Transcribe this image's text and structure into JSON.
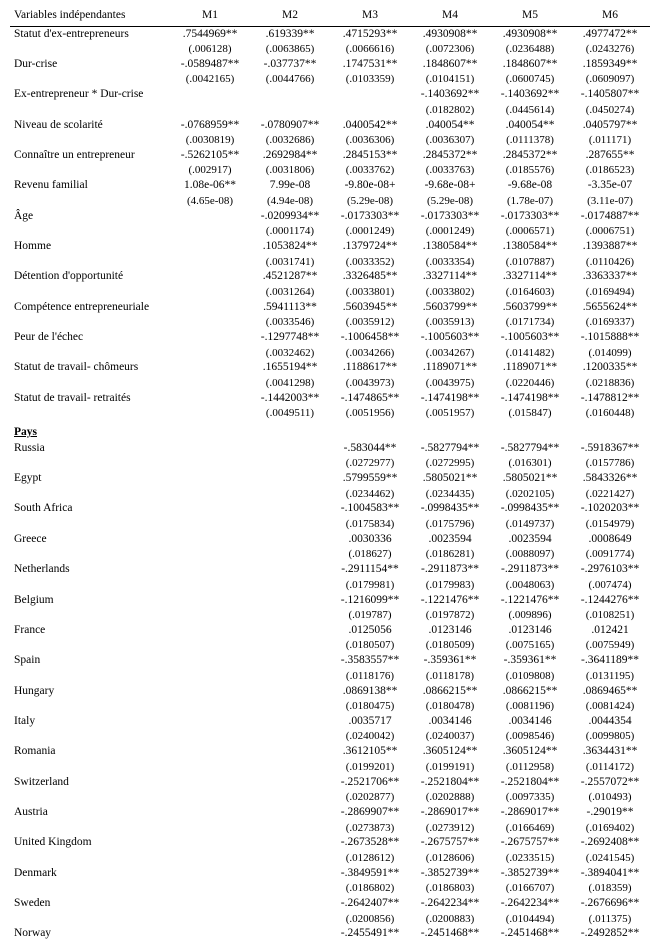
{
  "header": {
    "varlabel": "Variables indépendantes",
    "models": [
      "M1",
      "M2",
      "M3",
      "M4",
      "M5",
      "M6"
    ]
  },
  "rows": [
    {
      "label": "Statut d'ex-entrepreneurs",
      "coef": [
        ".7544969**",
        ".619339**",
        ".4715293**",
        ".4930908**",
        ".4930908**",
        ".4977472**"
      ],
      "se": [
        "(.006128)",
        "(.0063865)",
        "(.0066616)",
        "(.0072306)",
        "(.0236488)",
        "(.0243276)"
      ]
    },
    {
      "label": "Dur-crise",
      "coef": [
        "-.0589487**",
        "-.037737**",
        ".1747531**",
        ".1848607**",
        ".1848607**",
        ".1859349**"
      ],
      "se": [
        "(.0042165)",
        "(.0044766)",
        "(.0103359)",
        "(.0104151)",
        "(.0600745)",
        "(.0609097)"
      ]
    },
    {
      "label": "Ex-entrepreneur * Dur-crise",
      "coef": [
        "",
        "",
        "",
        "-.1403692**",
        "-.1403692**",
        "-.1405807**"
      ],
      "se": [
        "",
        "",
        "",
        "(.0182802)",
        "(.0445614)",
        "(.0450274)"
      ]
    },
    {
      "label": "Niveau de scolarité",
      "coef": [
        "-.0768959**",
        "-.0780907**",
        ".0400542**",
        ".040054**",
        ".040054**",
        ".0405797**"
      ],
      "se": [
        "(.0030819)",
        "(.0032686)",
        "(.0036306)",
        "(.0036307)",
        "(.0111378)",
        "(.011171)"
      ]
    },
    {
      "label": "Connaître un entrepreneur",
      "coef": [
        "-.5262105**",
        ".2692984**",
        ".2845153**",
        ".2845372**",
        ".2845372**",
        ".287655**"
      ],
      "se": [
        "(.002917)",
        "(.0031806)",
        "(.0033762)",
        "(.0033763)",
        "(.0185576)",
        "(.0186523)"
      ]
    },
    {
      "label": "Revenu familial",
      "coef": [
        "1.08e-06**",
        "7.99e-08",
        "-9.80e-08+",
        "-9.68e-08+",
        "-9.68e-08",
        "-3.35e-07"
      ],
      "se": [
        "(4.65e-08)",
        "(4.94e-08)",
        "(5.29e-08)",
        "(5.29e-08)",
        "(1.78e-07)",
        "(3.11e-07)"
      ]
    },
    {
      "label": "Âge",
      "coef": [
        "",
        "-.0209934**",
        "-.0173303**",
        "-.0173303**",
        "-.0173303**",
        "-.0174887**"
      ],
      "se": [
        "",
        "(.0001174)",
        "(.0001249)",
        "(.0001249)",
        "(.0006571)",
        "(.0006751)"
      ]
    },
    {
      "label": "Homme",
      "coef": [
        "",
        ".1053824**",
        ".1379724**",
        ".1380584**",
        ".1380584**",
        ".1393887**"
      ],
      "se": [
        "",
        "(.0031741)",
        "(.0033352)",
        "(.0033354)",
        "(.0107887)",
        "(.0110426)"
      ]
    },
    {
      "label": "Détention d'opportunité",
      "coef": [
        "",
        ".4521287**",
        ".3326485**",
        ".3327114**",
        ".3327114**",
        ".3363337**"
      ],
      "se": [
        "",
        "(.0031264)",
        "(.0033801)",
        "(.0033802)",
        "(.0164603)",
        "(.0169494)"
      ]
    },
    {
      "label": "Compétence entrepreneuriale",
      "coef": [
        "",
        ".5941113**",
        ".5603945**",
        ".5603799**",
        ".5603799**",
        ".5655624**"
      ],
      "se": [
        "",
        "(.0033546)",
        "(.0035912)",
        "(.0035913)",
        "(.0171734)",
        "(.0169337)"
      ]
    },
    {
      "label": "Peur de l'échec",
      "coef": [
        "",
        "-.1297748**",
        "-.1006458**",
        "-.1005603**",
        "-.1005603**",
        "-.1015888**"
      ],
      "se": [
        "",
        "(.0032462)",
        "(.0034266)",
        "(.0034267)",
        "(.0141482)",
        "(.014099)"
      ]
    },
    {
      "label": "Statut de travail- chômeurs",
      "coef": [
        "",
        ".1655194**",
        ".1188617**",
        ".1189071**",
        ".1189071**",
        ".1200335**"
      ],
      "se": [
        "",
        "(.0041298)",
        "(.0043973)",
        "(.0043975)",
        "(.0220446)",
        "(.0218836)"
      ]
    },
    {
      "label": "Statut de travail- retraités",
      "coef": [
        "",
        "-.1442003**",
        "-.1474865**",
        "-.1474198**",
        "-.1474198**",
        "-.1478812**"
      ],
      "se": [
        "",
        "(.0049511)",
        "(.0051956)",
        "(.0051957)",
        "(.015847)",
        "(.0160448)"
      ]
    }
  ],
  "section": "Pays",
  "countries": [
    {
      "label": "Russia",
      "coef": [
        "",
        "",
        "-.583044**",
        "-.5827794**",
        "-.5827794**",
        "-.5918367**"
      ],
      "se": [
        "",
        "",
        "(.0272977)",
        "(.0272995)",
        "(.016301)",
        "(.0157786)"
      ]
    },
    {
      "label": "Egypt",
      "coef": [
        "",
        "",
        ".5799559**",
        ".5805021**",
        ".5805021**",
        ".5843326**"
      ],
      "se": [
        "",
        "",
        "(.0234462)",
        "(.0234435)",
        "(.0202105)",
        "(.0221427)"
      ]
    },
    {
      "label": "South Africa",
      "coef": [
        "",
        "",
        "-.1004583**",
        "-.0998435**",
        "-.0998435**",
        "-.1020203**"
      ],
      "se": [
        "",
        "",
        "(.0175834)",
        "(.0175796)",
        "(.0149737)",
        "(.0154979)"
      ]
    },
    {
      "label": "Greece",
      "coef": [
        "",
        "",
        ".0030336",
        ".0023594",
        ".0023594",
        ".0008649"
      ],
      "se": [
        "",
        "",
        "(.018627)",
        "(.0186281)",
        "(.0088097)",
        "(.0091774)"
      ]
    },
    {
      "label": "Netherlands",
      "coef": [
        "",
        "",
        "-.2911154**",
        "-.2911873**",
        "-.2911873**",
        "-.2976103**"
      ],
      "se": [
        "",
        "",
        "(.0179981)",
        "(.0179983)",
        "(.0048063)",
        "(.007474)"
      ]
    },
    {
      "label": "Belgium",
      "coef": [
        "",
        "",
        "-.1216099**",
        "-.1221476**",
        "-.1221476**",
        "-.1244276**"
      ],
      "se": [
        "",
        "",
        "(.019787)",
        "(.0197872)",
        "(.009896)",
        "(.0108251)"
      ]
    },
    {
      "label": "France",
      "coef": [
        "",
        "",
        ".0125056",
        ".0123146",
        ".0123146",
        ".012421"
      ],
      "se": [
        "",
        "",
        "(.0180507)",
        "(.0180509)",
        "(.0075165)",
        "(.0075949)"
      ]
    },
    {
      "label": "Spain",
      "coef": [
        "",
        "",
        "-.3583557**",
        "-.359361**",
        "-.359361**",
        "-.3641189**"
      ],
      "se": [
        "",
        "",
        "(.0118176)",
        "(.0118178)",
        "(.0109808)",
        "(.0131195)"
      ]
    },
    {
      "label": "Hungary",
      "coef": [
        "",
        "",
        ".0869138**",
        ".0866215**",
        ".0866215**",
        ".0869465**"
      ],
      "se": [
        "",
        "",
        "(.0180475)",
        "(.0180478)",
        "(.0081196)",
        "(.0081424)"
      ]
    },
    {
      "label": "Italy",
      "coef": [
        "",
        "",
        ".0035717",
        ".0034146",
        ".0034146",
        ".0044354"
      ],
      "se": [
        "",
        "",
        "(.0240042)",
        "(.0240037)",
        "(.0098546)",
        "(.0099805)"
      ]
    },
    {
      "label": "Romania",
      "coef": [
        "",
        "",
        ".3612105**",
        ".3605124**",
        ".3605124**",
        ".3634431**"
      ],
      "se": [
        "",
        "",
        "(.0199201)",
        "(.0199191)",
        "(.0112958)",
        "(.0114172)"
      ]
    },
    {
      "label": "Switzerland",
      "coef": [
        "",
        "",
        "-.2521706**",
        "-.2521804**",
        "-.2521804**",
        "-.2557072**"
      ],
      "se": [
        "",
        "",
        "(.0202877)",
        "(.0202888)",
        "(.0097335)",
        "(.010493)"
      ]
    },
    {
      "label": "Austria",
      "coef": [
        "",
        "",
        "-.2869907**",
        "-.2869017**",
        "-.2869017**",
        "-.29019**"
      ],
      "se": [
        "",
        "",
        "(.0273873)",
        "(.0273912)",
        "(.0166469)",
        "(.0169402)"
      ]
    },
    {
      "label": "United Kingdom",
      "coef": [
        "",
        "",
        "-.2673528**",
        "-.2675757**",
        "-.2675757**",
        "-.2692408**"
      ],
      "se": [
        "",
        "",
        "(.0128612)",
        "(.0128606)",
        "(.0233515)",
        "(.0241545)"
      ]
    },
    {
      "label": "Denmark",
      "coef": [
        "",
        "",
        "-.3849591**",
        "-.3852739**",
        "-.3852739**",
        "-.3894041**"
      ],
      "se": [
        "",
        "",
        "(.0186802)",
        "(.0186803)",
        "(.0166707)",
        "(.018359)"
      ]
    },
    {
      "label": "Sweden",
      "coef": [
        "",
        "",
        "-.2642407**",
        "-.2642234**",
        "-.2642234**",
        "-.2676696**"
      ],
      "se": [
        "",
        "",
        "(.0200856)",
        "(.0200883)",
        "(.0104494)",
        "(.011375)"
      ]
    },
    {
      "label": "Norway",
      "coef": [
        "",
        "",
        "-.2455491**",
        "-.2451468**",
        "-.2451468**",
        "-.2492852**"
      ],
      "se": [
        "",
        "",
        "",
        "",
        "",
        ""
      ]
    }
  ]
}
